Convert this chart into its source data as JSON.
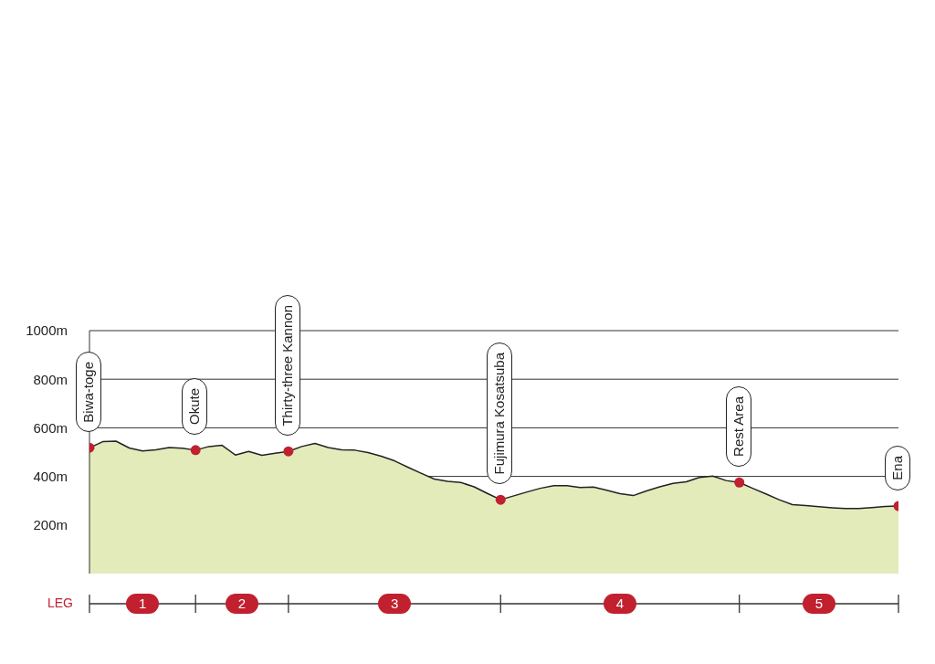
{
  "chart_data": {
    "type": "area",
    "categories": [
      null,
      null,
      null,
      null,
      null,
      null,
      null,
      null,
      null,
      null,
      null,
      null,
      null,
      null,
      null,
      null,
      null,
      null,
      null,
      null,
      null,
      null,
      null,
      null,
      null,
      null,
      null,
      null,
      null,
      null,
      null,
      null,
      null,
      null,
      null,
      null,
      null,
      null,
      null,
      null,
      null,
      null,
      null,
      null,
      null,
      null,
      null,
      null,
      null,
      null,
      null,
      null,
      null,
      null,
      null,
      null,
      null,
      null,
      null,
      null,
      null,
      null
    ],
    "series": [
      {
        "color": "#e3ebbb",
        "values": [
          518,
          543,
          545,
          517,
          505,
          509,
          519,
          516,
          508,
          523,
          528,
          488,
          503,
          487,
          495,
          503,
          523,
          536,
          519,
          509,
          508,
          498,
          483,
          464,
          438,
          413,
          389,
          380,
          375,
          357,
          330,
          304,
          320,
          336,
          351,
          362,
          362,
          354,
          356,
          343,
          329,
          321,
          340,
          357,
          371,
          378,
          396,
          401,
          383,
          375,
          351,
          328,
          304,
          284,
          280,
          275,
          271,
          268,
          268,
          272,
          276,
          278
        ]
      },
      {
        "type": "scatter",
        "marker": "circle",
        "color": "#c1202f",
        "values": [
          518,
          null,
          null,
          null,
          null,
          null,
          null,
          null,
          508,
          null,
          null,
          null,
          null,
          null,
          null,
          503,
          null,
          null,
          null,
          null,
          null,
          null,
          null,
          null,
          null,
          null,
          null,
          null,
          null,
          null,
          null,
          304,
          null,
          null,
          null,
          null,
          null,
          null,
          null,
          null,
          null,
          null,
          null,
          null,
          null,
          null,
          null,
          null,
          null,
          375,
          null,
          null,
          null,
          null,
          null,
          null,
          null,
          null,
          null,
          null,
          null,
          278
        ]
      }
    ],
    "ylim": [
      0,
      1000
    ],
    "yticks": [
      {
        "value": 200,
        "label": "200m"
      },
      {
        "value": 400,
        "label": "400m"
      },
      {
        "value": 600,
        "label": "600m"
      },
      {
        "value": 800,
        "label": "800m"
      },
      {
        "value": 1000,
        "label": "1000m"
      }
    ],
    "grid": "y",
    "tick_labels": "y",
    "annotations": [
      "Biwa-toge",
      "Okute",
      "Thirty-three Kannon",
      "Fujimura Kosatsuba",
      "Rest Area",
      "Ena",
      "LEG",
      "1",
      "2",
      "3",
      "4",
      "5"
    ]
  }
}
